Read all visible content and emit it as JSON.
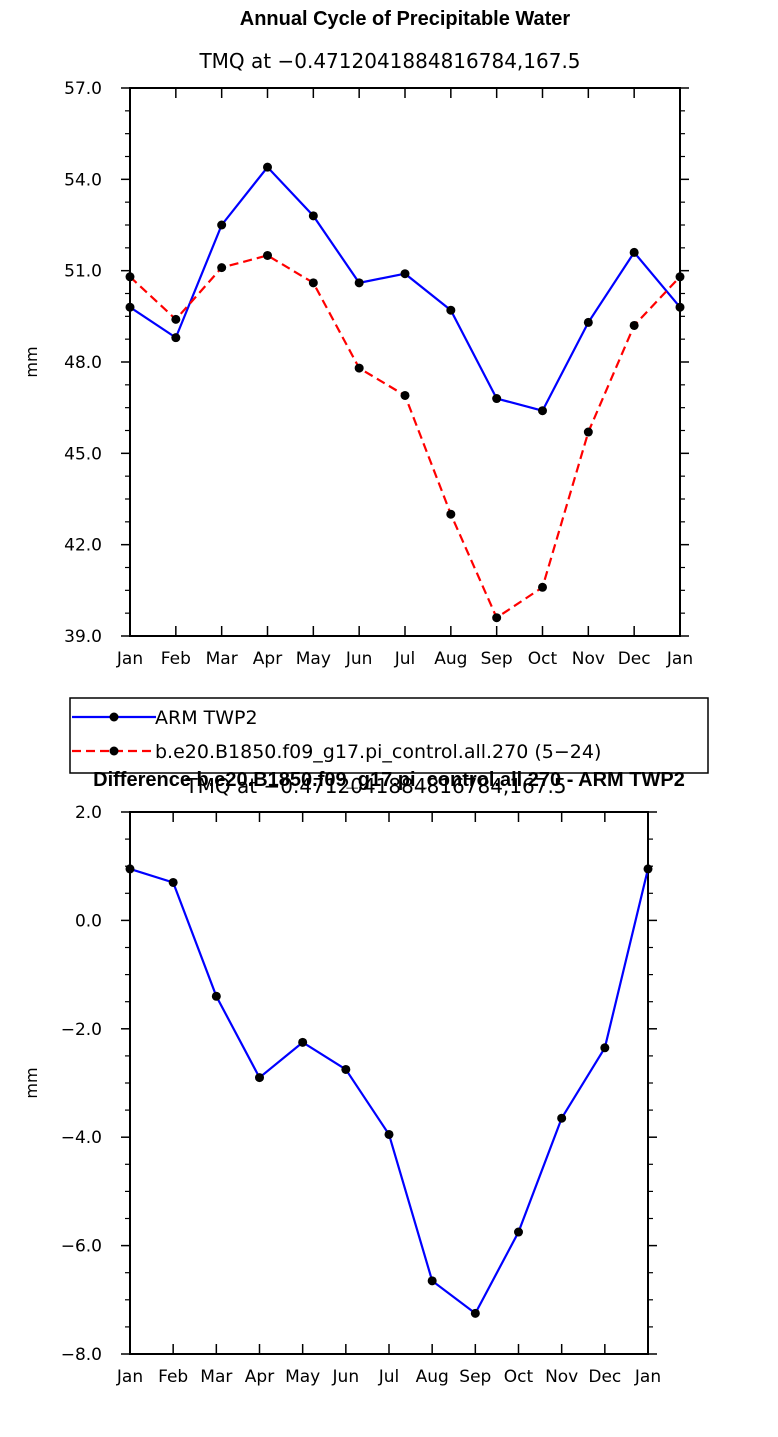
{
  "chart_data": [
    {
      "type": "line",
      "title": "Annual Cycle of Precipitable Water",
      "subtitle": "TMQ at −0.4712041884816784,167.5",
      "ylabel": "mm",
      "xlabel": "",
      "categories": [
        "Jan",
        "Feb",
        "Mar",
        "Apr",
        "May",
        "Jun",
        "Jul",
        "Aug",
        "Sep",
        "Oct",
        "Nov",
        "Dec",
        "Jan"
      ],
      "ylim": [
        39.0,
        57.0
      ],
      "yticks": [
        39.0,
        42.0,
        45.0,
        48.0,
        51.0,
        54.0,
        57.0
      ],
      "ytick_labels": [
        "39.0",
        "42.0",
        "45.0",
        "48.0",
        "51.0",
        "54.0",
        "57.0"
      ],
      "series": [
        {
          "name": "ARM TWP2",
          "color": "#0000ff",
          "dash": "solid",
          "values": [
            49.8,
            48.8,
            52.5,
            54.4,
            52.8,
            50.6,
            50.9,
            49.7,
            46.8,
            46.4,
            49.3,
            51.6,
            49.8
          ]
        },
        {
          "name": "b.e20.B1850.f09_g17.pi_control.all.270 (5−24)",
          "color": "#ff0000",
          "dash": "dashed",
          "values": [
            50.8,
            49.4,
            51.1,
            51.5,
            50.6,
            47.8,
            46.9,
            43.0,
            39.6,
            40.6,
            45.7,
            49.2,
            50.8
          ]
        }
      ],
      "legend_position": "below"
    },
    {
      "type": "line",
      "title": "Difference b.e20.B1850.f09_g17.pi_control.all.270 - ARM TWP2",
      "subtitle": "TMQ at −0.4712041884816784,167.5",
      "ylabel": "mm",
      "xlabel": "",
      "categories": [
        "Jan",
        "Feb",
        "Mar",
        "Apr",
        "May",
        "Jun",
        "Jul",
        "Aug",
        "Sep",
        "Oct",
        "Nov",
        "Dec",
        "Jan"
      ],
      "ylim": [
        -8.0,
        2.0
      ],
      "yticks": [
        -8.0,
        -6.0,
        -4.0,
        -2.0,
        0.0,
        2.0
      ],
      "ytick_labels": [
        "−8.0",
        "−6.0",
        "−4.0",
        "−2.0",
        "0.0",
        "2.0"
      ],
      "series": [
        {
          "color": "#0000ff",
          "dash": "solid",
          "values": [
            0.95,
            0.7,
            -1.4,
            -2.9,
            -2.25,
            -2.75,
            -3.95,
            -6.65,
            -7.25,
            -5.75,
            -3.65,
            -2.35,
            0.95
          ]
        }
      ]
    }
  ]
}
